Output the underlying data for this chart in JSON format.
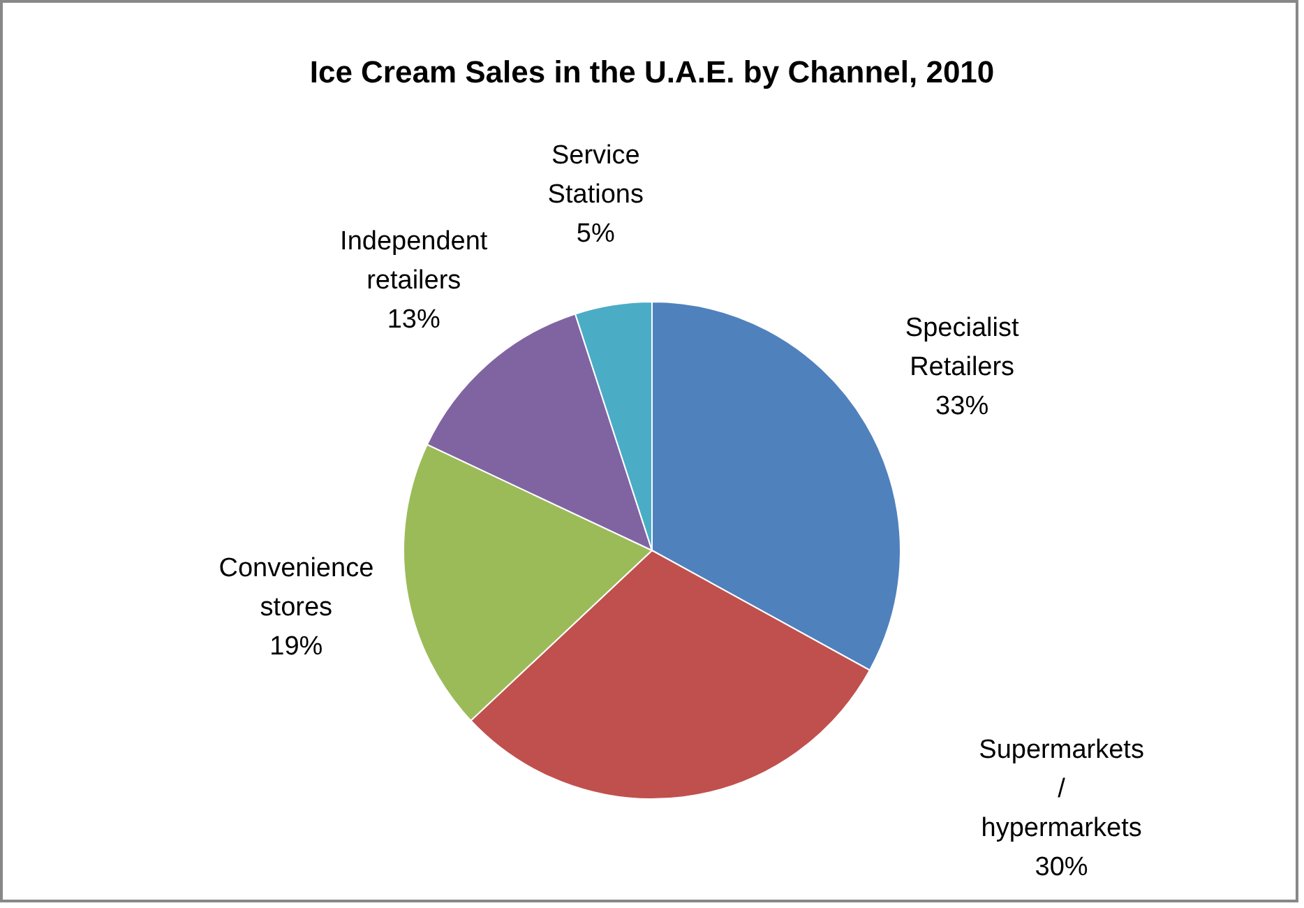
{
  "chart_data": {
    "type": "pie",
    "title": "Ice Cream Sales in the U.A.E. by Channel, 2010",
    "categories": [
      "Specialist Retailers",
      "Supermarkets / hypermarkets",
      "Convenience stores",
      "Independent retailers",
      "Service Stations"
    ],
    "values": [
      33,
      30,
      19,
      13,
      5
    ],
    "colors": [
      "#4f81bd",
      "#c0504d",
      "#9bbb59",
      "#8064a2",
      "#4bacc6"
    ],
    "value_labels": [
      "33%",
      "30%",
      "19%",
      "13%",
      "5%"
    ]
  }
}
